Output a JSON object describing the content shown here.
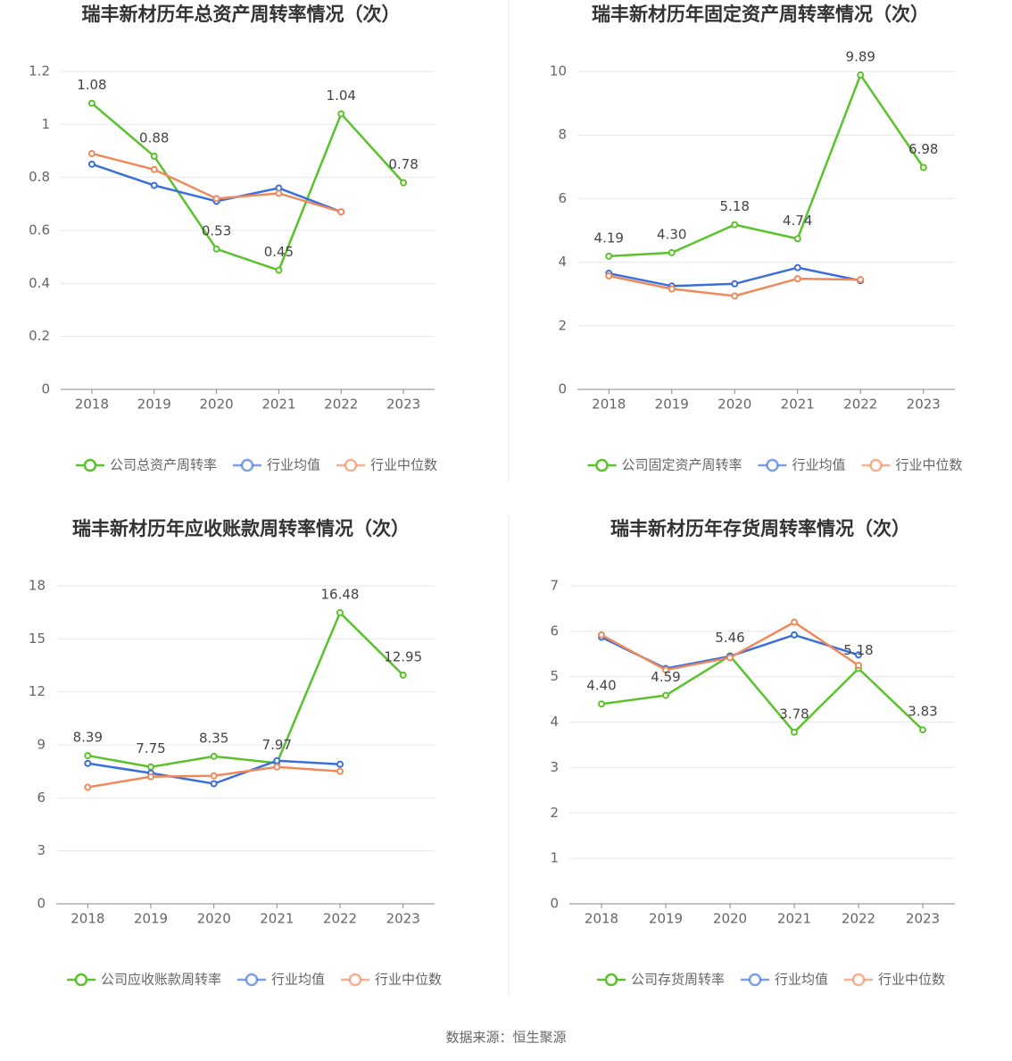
{
  "chart_data": [
    {
      "type": "line",
      "title": "瑞丰新材历年总资产周转率情况（次）",
      "categories": [
        "2018",
        "2019",
        "2020",
        "2021",
        "2022",
        "2023"
      ],
      "ylim": [
        0,
        1.2
      ],
      "yticks": [
        0,
        0.2,
        0.4,
        0.6,
        0.8,
        1,
        1.2
      ],
      "grid": true,
      "series": [
        {
          "name": "公司总资产周转率",
          "color": "#5bc22c",
          "values": [
            1.08,
            0.88,
            0.53,
            0.45,
            1.04,
            0.78
          ],
          "value_labels": [
            "1.08",
            "0.88",
            "0.53",
            "0.45",
            "1.04",
            "0.78"
          ]
        },
        {
          "name": "行业均值",
          "color": "#3a6fdb",
          "values": [
            0.85,
            0.77,
            0.71,
            0.76,
            0.67,
            null
          ]
        },
        {
          "name": "行业中位数",
          "color": "#f0895a",
          "values": [
            0.89,
            0.83,
            0.72,
            0.74,
            0.67,
            null
          ]
        }
      ]
    },
    {
      "type": "line",
      "title": "瑞丰新材历年固定资产周转率情况（次）",
      "categories": [
        "2018",
        "2019",
        "2020",
        "2021",
        "2022",
        "2023"
      ],
      "ylim": [
        0,
        10
      ],
      "yticks": [
        0,
        2,
        4,
        6,
        8,
        10
      ],
      "grid": true,
      "series": [
        {
          "name": "公司固定资产周转率",
          "color": "#5bc22c",
          "values": [
            4.19,
            4.3,
            5.18,
            4.74,
            9.89,
            6.98
          ],
          "value_labels": [
            "4.19",
            "4.30",
            "5.18",
            "4.74",
            "9.89",
            "6.98"
          ]
        },
        {
          "name": "行业均值",
          "color": "#3a6fdb",
          "values": [
            3.65,
            3.25,
            3.32,
            3.83,
            3.42,
            null
          ]
        },
        {
          "name": "行业中位数",
          "color": "#f0895a",
          "values": [
            3.57,
            3.16,
            2.94,
            3.48,
            3.45,
            null
          ]
        }
      ]
    },
    {
      "type": "line",
      "title": "瑞丰新材历年应收账款周转率情况（次）",
      "categories": [
        "2018",
        "2019",
        "2020",
        "2021",
        "2022",
        "2023"
      ],
      "ylim": [
        0,
        18
      ],
      "yticks": [
        0,
        3,
        6,
        9,
        12,
        15,
        18
      ],
      "grid": true,
      "series": [
        {
          "name": "公司应收账款周转率",
          "color": "#5bc22c",
          "values": [
            8.39,
            7.75,
            8.35,
            7.97,
            16.48,
            12.95
          ],
          "value_labels": [
            "8.39",
            "7.75",
            "8.35",
            "7.97",
            "16.48",
            "12.95"
          ]
        },
        {
          "name": "行业均值",
          "color": "#3a6fdb",
          "values": [
            7.95,
            7.4,
            6.8,
            8.1,
            7.9,
            null
          ]
        },
        {
          "name": "行业中位数",
          "color": "#f0895a",
          "values": [
            6.6,
            7.2,
            7.25,
            7.75,
            7.5,
            null
          ]
        }
      ]
    },
    {
      "type": "line",
      "title": "瑞丰新材历年存货周转率情况（次）",
      "categories": [
        "2018",
        "2019",
        "2020",
        "2021",
        "2022",
        "2023"
      ],
      "ylim": [
        0,
        7
      ],
      "yticks": [
        0,
        1,
        2,
        3,
        4,
        5,
        6,
        7
      ],
      "grid": true,
      "series": [
        {
          "name": "公司存货周转率",
          "color": "#5bc22c",
          "values": [
            4.4,
            4.59,
            5.46,
            3.78,
            5.18,
            3.83
          ],
          "value_labels": [
            "4.40",
            "4.59",
            "5.46",
            "3.78",
            "5.18",
            "3.83"
          ]
        },
        {
          "name": "行业均值",
          "color": "#3a6fdb",
          "values": [
            5.87,
            5.18,
            5.45,
            5.92,
            5.48,
            null
          ]
        },
        {
          "name": "行业中位数",
          "color": "#f0895a",
          "values": [
            5.92,
            5.15,
            5.42,
            6.2,
            5.25,
            null
          ]
        }
      ]
    }
  ],
  "source": "数据来源：恒生聚源"
}
